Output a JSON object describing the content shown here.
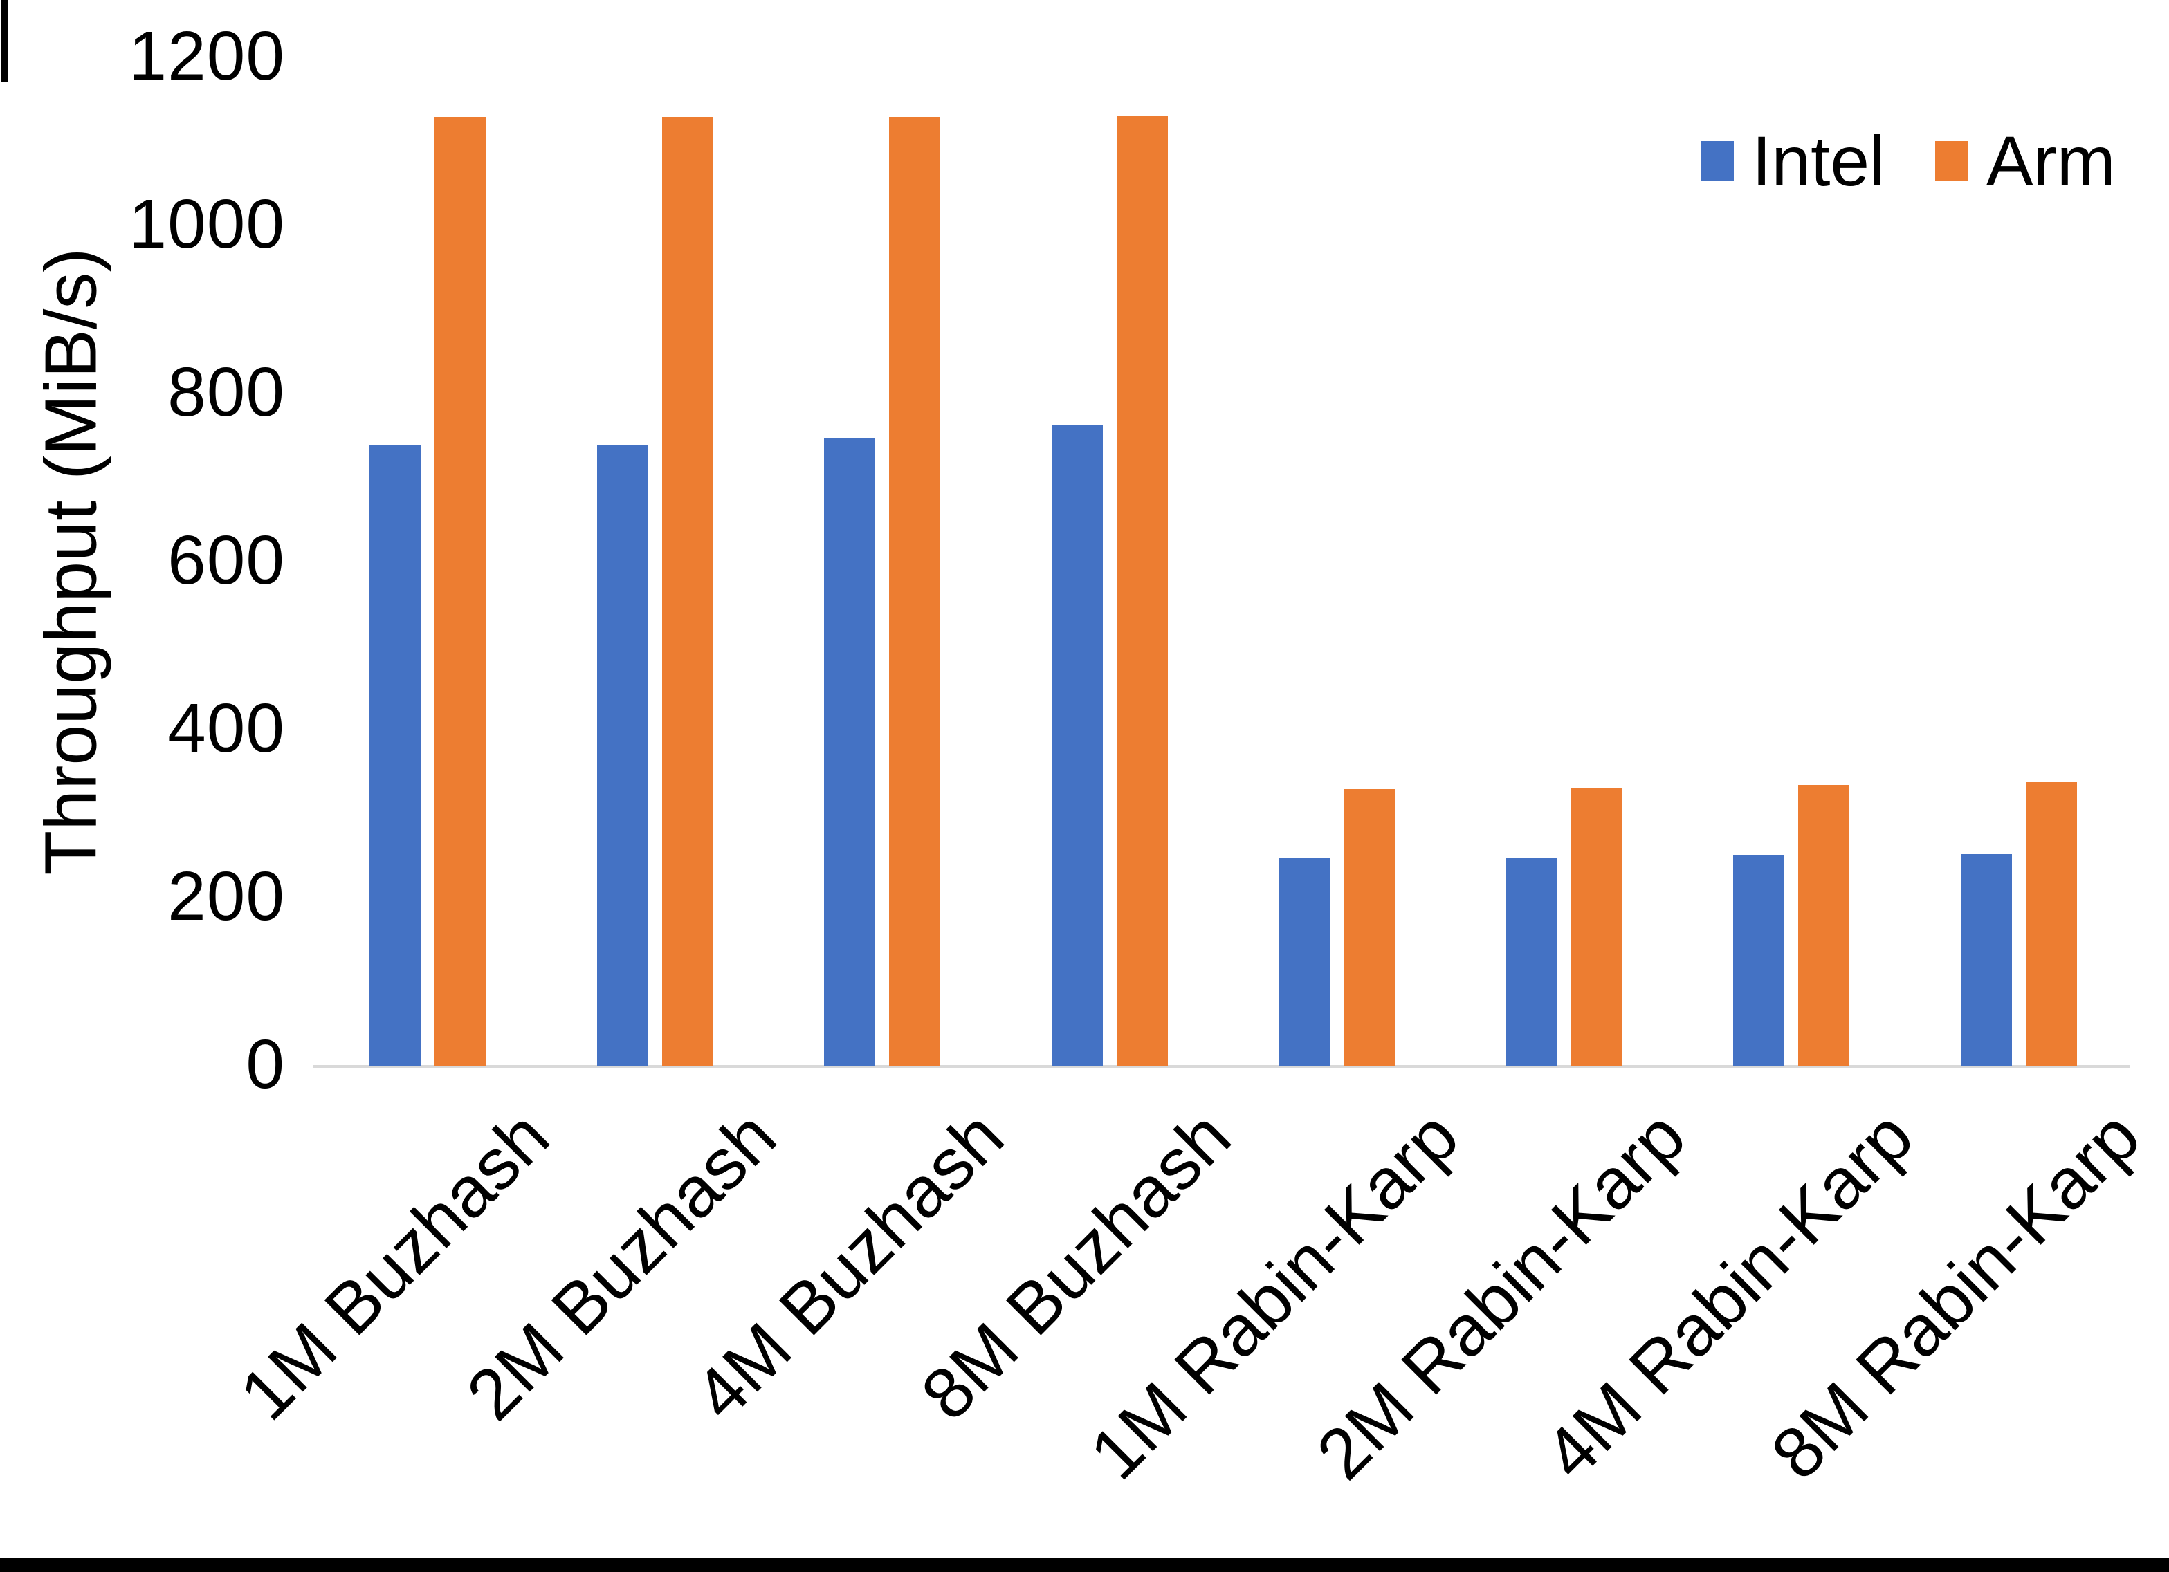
{
  "chart_data": {
    "type": "bar",
    "title": "",
    "xlabel": "",
    "ylabel": "Throughput (MiB/s)",
    "categories": [
      "1M Buzhash",
      "2M Buzhash",
      "4M Buzhash",
      "8M Buzhash",
      "1M Rabin-Karp",
      "2M Rabin-Karp",
      "4M Rabin-Karp",
      "8M Rabin-Karp"
    ],
    "series": [
      {
        "name": "Intel",
        "color": "#4472C4",
        "values": [
          740,
          739,
          748,
          764,
          248,
          248,
          252,
          253
        ]
      },
      {
        "name": "Arm",
        "color": "#ED7D31",
        "values": [
          1130,
          1130,
          1130,
          1131,
          330,
          332,
          335,
          338
        ]
      }
    ],
    "ylim": [
      0,
      1200
    ],
    "yticks": [
      0,
      200,
      400,
      600,
      800,
      1000,
      1200
    ],
    "grid": false,
    "legend_position": "top-right",
    "background_color": "#ffffff",
    "axis_line_color": "#d9d9d9",
    "text_color": "#000000"
  }
}
